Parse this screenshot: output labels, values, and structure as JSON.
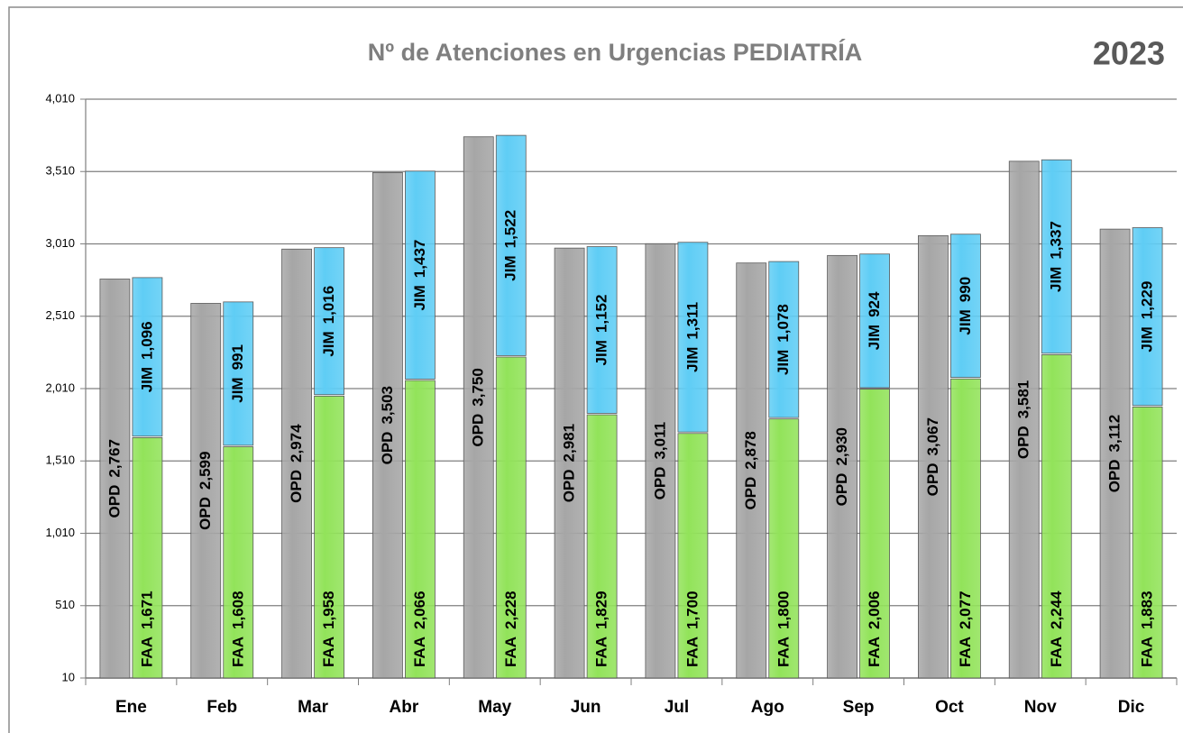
{
  "chart_data": {
    "type": "bar",
    "title": "Nº de Atenciones en Urgencias PEDIATRÍA",
    "subtitle": "2023",
    "categories": [
      "Ene",
      "Feb",
      "Mar",
      "Abr",
      "May",
      "Jun",
      "Jul",
      "Ago",
      "Sep",
      "Oct",
      "Nov",
      "Dic"
    ],
    "series": [
      {
        "name": "OPD",
        "color": "#a6a6a6",
        "stack": "a",
        "values": [
          2767,
          2599,
          2974,
          3503,
          3750,
          2981,
          3011,
          2878,
          2930,
          3067,
          3581,
          3112
        ],
        "value_labels": [
          "2,767",
          "2,599",
          "2,974",
          "3,503",
          "3,750",
          "2,981",
          "3,011",
          "2,878",
          "2,930",
          "3,067",
          "3,581",
          "3,112"
        ]
      },
      {
        "name": "FAA",
        "color": "#92e35a",
        "stack": "b",
        "values": [
          1671,
          1608,
          1958,
          2066,
          2228,
          1829,
          1700,
          1800,
          2006,
          2077,
          2244,
          1883
        ],
        "value_labels": [
          "1,671",
          "1,608",
          "1,958",
          "2,066",
          "2,228",
          "1,829",
          "1,700",
          "1,800",
          "2,006",
          "2,077",
          "2,244",
          "1,883"
        ]
      },
      {
        "name": "JIM",
        "color": "#5fcdf5",
        "stack": "b",
        "values": [
          1096,
          991,
          1016,
          1437,
          1522,
          1152,
          1311,
          1078,
          924,
          990,
          1337,
          1229
        ],
        "value_labels": [
          "1,096",
          "991",
          "1,016",
          "1,437",
          "1,522",
          "1,152",
          "1,311",
          "1,078",
          "924",
          "990",
          "1,337",
          "1,229"
        ]
      }
    ],
    "ylim": [
      10,
      4010
    ],
    "yticks": [
      10,
      510,
      {
        "value": 1010,
        "label": "1,010"
      },
      {
        "value": 1510,
        "label": "1,510"
      },
      {
        "value": 2010,
        "label": "2,010"
      },
      {
        "value": 2510,
        "label": "2,510"
      },
      {
        "value": 3010,
        "label": "3,010"
      },
      {
        "value": 3510,
        "label": "3,510"
      },
      {
        "value": 4010,
        "label": "4,010"
      }
    ],
    "grid": true
  }
}
